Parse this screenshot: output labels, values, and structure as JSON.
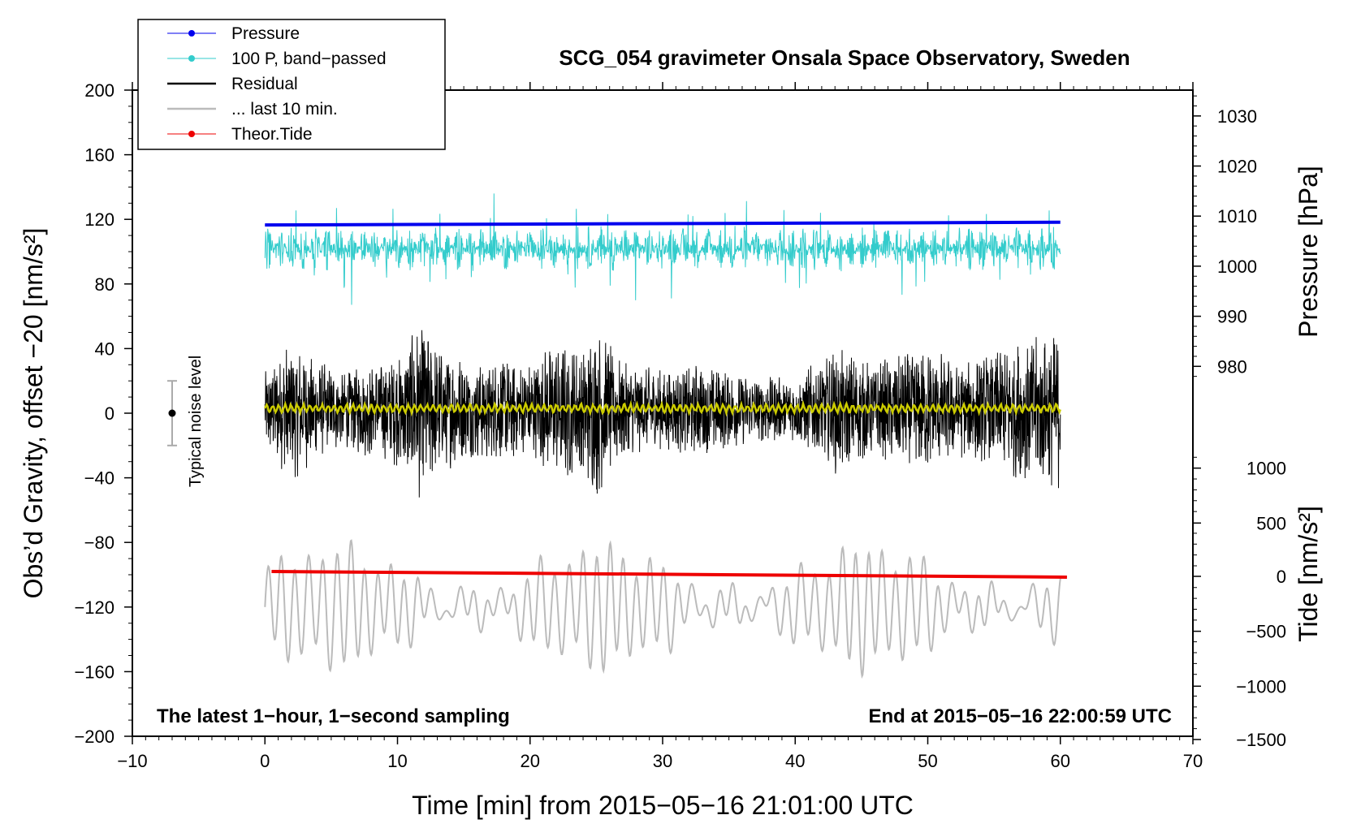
{
  "chart_data": {
    "type": "line",
    "title": "SCG_054 gravimeter Onsala Space Observatory, Sweden",
    "xlabel": "Time [min] from 2015−05−16 21:01:00 UTC",
    "ylabel_left": "Obs’d Gravity, offset −20 [nm/s²]",
    "ylabel_right_pressure": "Pressure [hPa]",
    "ylabel_right_tide": "Tide [nm/s²]",
    "xlim": [
      -10,
      70
    ],
    "ylim": [
      -200,
      200
    ],
    "x_ticks": [
      "−10",
      "0",
      "10",
      "20",
      "30",
      "40",
      "50",
      "60",
      "70"
    ],
    "x_tick_values": [
      -10,
      0,
      10,
      20,
      30,
      40,
      50,
      60,
      70
    ],
    "y_ticks": [
      "200",
      "160",
      "120",
      "80",
      "40",
      "0",
      "−40",
      "−80",
      "−120",
      "−160",
      "−200"
    ],
    "y_tick_values": [
      200,
      160,
      120,
      80,
      40,
      0,
      -40,
      -80,
      -120,
      -160,
      -200
    ],
    "pressure_axis": {
      "ticks": [
        "1030",
        "1020",
        "1010",
        "1000",
        "990",
        "980"
      ],
      "values": [
        1030,
        1020,
        1010,
        1000,
        990,
        980
      ],
      "gravity_equiv": [
        184,
        153,
        122,
        91,
        60,
        29
      ]
    },
    "tide_axis": {
      "ticks": [
        "1000",
        "500",
        "0",
        "−500",
        "−1000",
        "−1500"
      ],
      "values": [
        1000,
        500,
        0,
        -500,
        -1000,
        -1500
      ],
      "gravity_equiv": [
        -34,
        -68,
        -101,
        -135,
        -169,
        -202
      ]
    },
    "annotation_left": "The latest 1−hour, 1−second sampling",
    "annotation_right": "End at 2015−05−16 22:00:59 UTC",
    "noise_label": "Typical noise level",
    "noise_bar": {
      "x": -7,
      "center": 0,
      "low": -20,
      "high": 20
    },
    "legend": [
      {
        "label": "Pressure",
        "color": "#0000ee",
        "marker": true
      },
      {
        "label": "100 P, band−passed",
        "color": "#33cccc",
        "marker": true
      },
      {
        "label": "Residual",
        "color": "#000000",
        "marker": false
      },
      {
        "label": "... last 10 min.",
        "color": "#bbbbbb",
        "marker": false
      },
      {
        "label": "Theor.Tide",
        "color": "#ee0000",
        "marker": true
      }
    ],
    "series": [
      {
        "name": "Pressure",
        "color": "#0000ee",
        "x_range": [
          0,
          60
        ],
        "y_start": 116.5,
        "y_end": 118.2
      },
      {
        "name": "100 P, band−passed",
        "color": "#33cccc",
        "x_range": [
          0,
          60
        ],
        "y_center": 102,
        "amplitude": 14
      },
      {
        "name": "Residual",
        "color": "#000000",
        "x_range": [
          0,
          60
        ],
        "y_center": 2,
        "amplitude": 30,
        "envelope": [
          [
            0,
            25
          ],
          [
            2,
            45
          ],
          [
            4,
            30
          ],
          [
            6,
            25
          ],
          [
            8,
            30
          ],
          [
            10,
            35
          ],
          [
            12,
            60
          ],
          [
            13,
            40
          ],
          [
            16,
            30
          ],
          [
            18,
            35
          ],
          [
            20,
            30
          ],
          [
            22,
            45
          ],
          [
            24,
            40
          ],
          [
            25,
            55
          ],
          [
            27,
            30
          ],
          [
            30,
            25
          ],
          [
            33,
            30
          ],
          [
            36,
            22
          ],
          [
            40,
            20
          ],
          [
            43,
            40
          ],
          [
            46,
            30
          ],
          [
            50,
            40
          ],
          [
            53,
            30
          ],
          [
            55,
            38
          ],
          [
            57,
            45
          ],
          [
            60,
            50
          ]
        ]
      },
      {
        "name": "Residual smoothed",
        "color": "#cccc00",
        "x_range": [
          0,
          60
        ],
        "y_center": 3,
        "amplitude": 2
      },
      {
        "name": "... last 10 min.",
        "color": "#bbbbbb",
        "x_range": [
          0,
          60
        ],
        "y_center": -120,
        "amplitude": 30
      },
      {
        "name": "Theor.Tide",
        "color": "#ee0000",
        "x_range": [
          0.5,
          60.5
        ],
        "y_start": -98,
        "y_end": -101.5
      }
    ]
  }
}
